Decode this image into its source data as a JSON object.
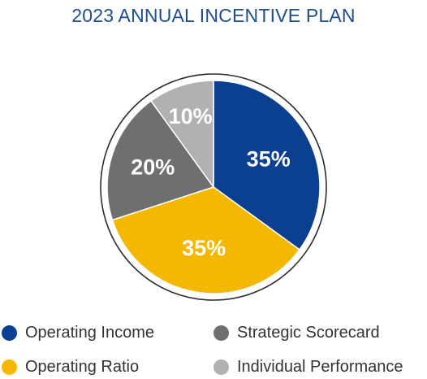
{
  "chart_data": {
    "type": "pie",
    "title": "2023 ANNUAL INCENTIVE PLAN",
    "slices": [
      {
        "label": "Operating Income",
        "value": 35,
        "display": "35%",
        "color": "#0b3f8f"
      },
      {
        "label": "Operating Ratio",
        "value": 35,
        "display": "35%",
        "color": "#f5b800"
      },
      {
        "label": "Strategic Scorecard",
        "value": 20,
        "display": "20%",
        "color": "#6f6f6f"
      },
      {
        "label": "Individual Performance",
        "value": 10,
        "display": "10%",
        "color": "#b1b1b1"
      }
    ],
    "legend_position": "bottom"
  }
}
